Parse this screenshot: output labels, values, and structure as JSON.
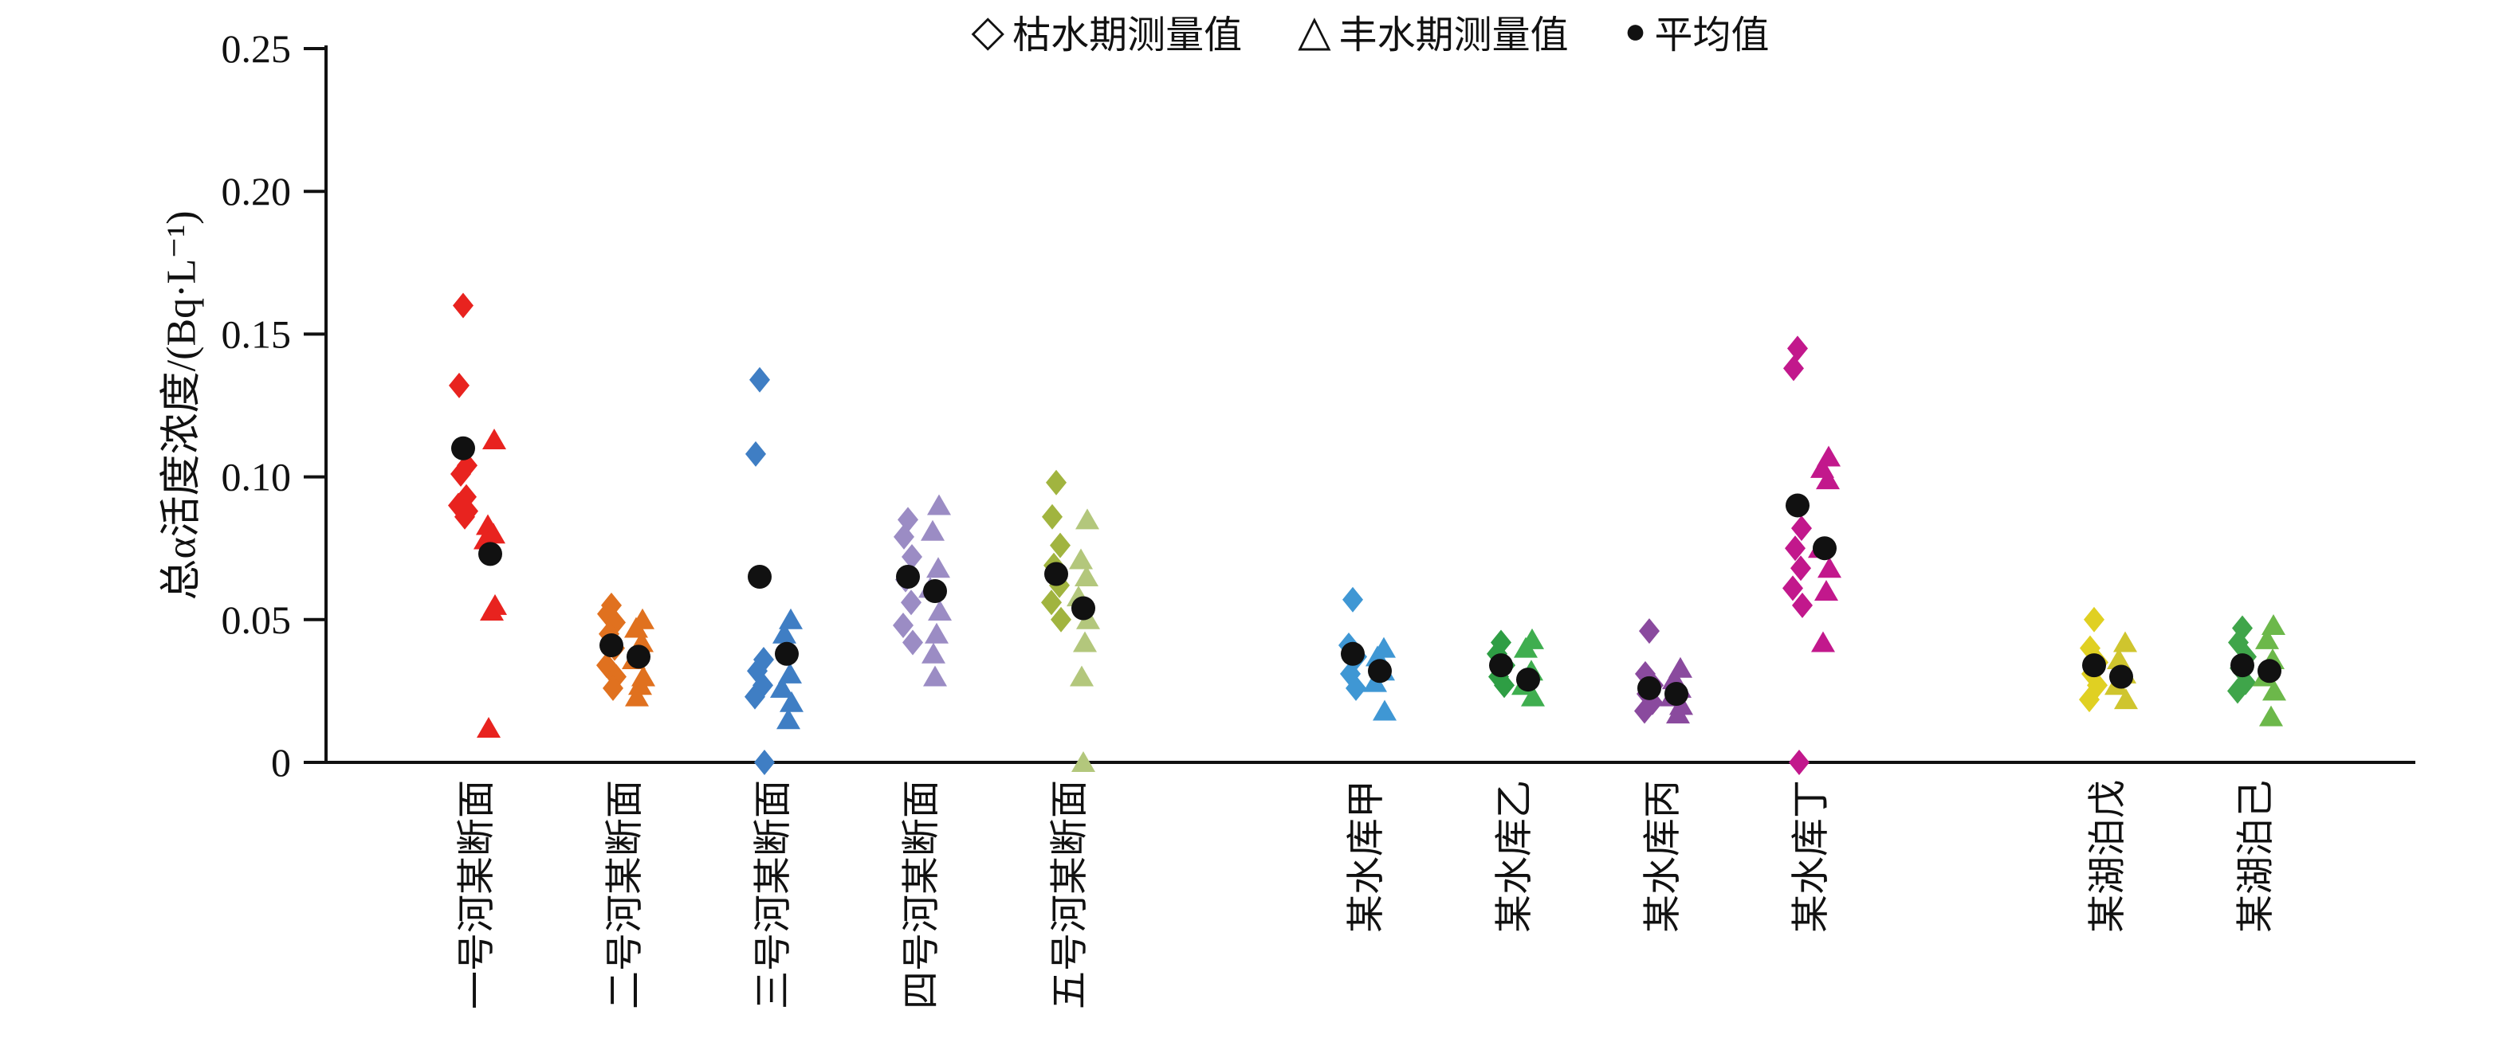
{
  "chart_data": {
    "type": "scatter",
    "title": "",
    "ylabel": "总α活度浓度/(Bq·L⁻¹)",
    "xlabel": "",
    "ylim": [
      0,
      0.25
    ],
    "ytick_values": [
      0,
      0.05,
      0.1,
      0.15,
      0.2,
      0.25
    ],
    "ytick_labels": [
      "0",
      "0.05",
      "0.10",
      "0.15",
      "0.20",
      "0.25"
    ],
    "grid": false,
    "legend_position": "top-center",
    "mean_color": "#111111",
    "axis_color": "#111111",
    "legend": [
      {
        "marker": "open-diamond-icon",
        "glyph": "◇",
        "label": "枯水期测量值"
      },
      {
        "marker": "open-triangle-icon",
        "glyph": "△",
        "label": "丰水期测量值"
      },
      {
        "marker": "filled-circle-icon",
        "glyph": "●",
        "label": "平均值"
      }
    ],
    "series_note": "diamonds = 枯水期测量值 (dry season), triangles = 丰水期测量值 (wet season), black dots = 平均值 (means)",
    "groups": [
      {
        "category": "一号河某断面",
        "group_type": "river",
        "color_dry": "#e8231f",
        "color_wet": "#e8231f",
        "dry": [
          0.16,
          0.132,
          0.104,
          0.101,
          0.093,
          0.09,
          0.088,
          0.086
        ],
        "wet": [
          0.113,
          0.083,
          0.08,
          0.078,
          0.055,
          0.053,
          0.012
        ],
        "dry_mean": 0.11,
        "wet_mean": 0.073
      },
      {
        "category": "二号河某断面",
        "group_type": "river",
        "color_dry": "#e0711f",
        "color_wet": "#e0711f",
        "dry": [
          0.055,
          0.052,
          0.049,
          0.045,
          0.04,
          0.034,
          0.03,
          0.026
        ],
        "wet": [
          0.05,
          0.047,
          0.042,
          0.036,
          0.03,
          0.027,
          0.023
        ],
        "dry_mean": 0.041,
        "wet_mean": 0.037
      },
      {
        "category": "三号河某断面",
        "group_type": "river",
        "color_dry": "#3f7ec4",
        "color_wet": "#3f7ec4",
        "dry": [
          0.134,
          0.108,
          0.036,
          0.032,
          0.027,
          0.023,
          0.0
        ],
        "wet": [
          0.05,
          0.045,
          0.031,
          0.026,
          0.021,
          0.015
        ],
        "dry_mean": 0.065,
        "wet_mean": 0.038
      },
      {
        "category": "四号河某断面",
        "group_type": "river",
        "color_dry": "#9b8cc4",
        "color_wet": "#9b8cc4",
        "dry": [
          0.085,
          0.079,
          0.072,
          0.064,
          0.056,
          0.048,
          0.042
        ],
        "wet": [
          0.09,
          0.081,
          0.068,
          0.061,
          0.053,
          0.045,
          0.038,
          0.03
        ],
        "dry_mean": 0.065,
        "wet_mean": 0.06
      },
      {
        "category": "五号河某断面",
        "group_type": "river",
        "color_dry": "#a1b43f",
        "color_wet": "#b3c77c",
        "dry": [
          0.098,
          0.086,
          0.076,
          0.069,
          0.062,
          0.056,
          0.05
        ],
        "wet": [
          0.085,
          0.071,
          0.065,
          0.058,
          0.05,
          0.042,
          0.03,
          0.0
        ],
        "dry_mean": 0.066,
        "wet_mean": 0.054
      },
      {
        "category": "某水库甲",
        "group_type": "reservoir",
        "color_dry": "#3f97d4",
        "color_wet": "#3f97d4",
        "dry": [
          0.057,
          0.041,
          0.037,
          0.031,
          0.026
        ],
        "wet": [
          0.04,
          0.037,
          0.032,
          0.028,
          0.018
        ],
        "dry_mean": 0.038,
        "wet_mean": 0.032
      },
      {
        "category": "某水库乙",
        "group_type": "reservoir",
        "color_dry": "#2e9e44",
        "color_wet": "#3fae4f",
        "dry": [
          0.042,
          0.038,
          0.034,
          0.03,
          0.027
        ],
        "wet": [
          0.043,
          0.04,
          0.032,
          0.027,
          0.023
        ],
        "dry_mean": 0.034,
        "wet_mean": 0.029
      },
      {
        "category": "某水库丙",
        "group_type": "reservoir",
        "color_dry": "#8a4a9e",
        "color_wet": "#8a4a9e",
        "dry": [
          0.046,
          0.031,
          0.027,
          0.024,
          0.021,
          0.018
        ],
        "wet": [
          0.033,
          0.029,
          0.026,
          0.023,
          0.02,
          0.017
        ],
        "dry_mean": 0.026,
        "wet_mean": 0.024
      },
      {
        "category": "某水库丁",
        "group_type": "reservoir",
        "color_dry": "#c2188c",
        "color_wet": "#c2188c",
        "dry": [
          0.145,
          0.138,
          0.082,
          0.075,
          0.068,
          0.061,
          0.055,
          0.0
        ],
        "wet": [
          0.107,
          0.103,
          0.099,
          0.075,
          0.068,
          0.06,
          0.042
        ],
        "dry_mean": 0.09,
        "wet_mean": 0.075
      },
      {
        "category": "某湖泊戊",
        "group_type": "lake",
        "color_dry": "#e0d022",
        "color_wet": "#cfc52e",
        "dry": [
          0.05,
          0.04,
          0.035,
          0.031,
          0.027,
          0.022
        ],
        "wet": [
          0.042,
          0.036,
          0.031,
          0.027,
          0.022
        ],
        "dry_mean": 0.034,
        "wet_mean": 0.03
      },
      {
        "category": "某湖泊己",
        "group_type": "lake",
        "color_dry": "#3fa54a",
        "color_wet": "#6cb84a",
        "dry": [
          0.047,
          0.042,
          0.037,
          0.033,
          0.028,
          0.025
        ],
        "wet": [
          0.048,
          0.043,
          0.036,
          0.03,
          0.025,
          0.016
        ],
        "dry_mean": 0.034,
        "wet_mean": 0.032
      }
    ]
  }
}
